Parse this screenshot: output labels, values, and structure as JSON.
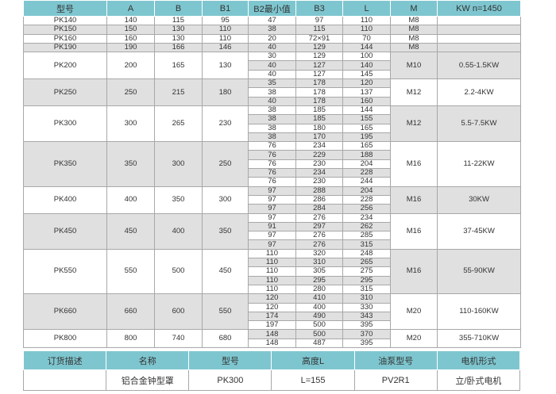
{
  "main": {
    "headers": [
      "型号",
      "A",
      "B",
      "B1",
      "B2最小值",
      "B3",
      "L",
      "M",
      "KW n=1450"
    ],
    "groups": [
      {
        "model": "PK140",
        "A": "140",
        "B": "115",
        "B1": "95",
        "M": "M8",
        "KW": "",
        "rows": [
          [
            "47",
            "97",
            "110"
          ]
        ]
      },
      {
        "model": "PK150",
        "A": "150",
        "B": "130",
        "B1": "110",
        "M": "M8",
        "KW": "",
        "rows": [
          [
            "38",
            "115",
            "110"
          ]
        ]
      },
      {
        "model": "PK160",
        "A": "160",
        "B": "130",
        "B1": "110",
        "M": "M8",
        "KW": "",
        "rows": [
          [
            "20",
            "72×91",
            "70"
          ]
        ]
      },
      {
        "model": "PK190",
        "A": "190",
        "B": "166",
        "B1": "146",
        "M": "M8",
        "KW": "",
        "rows": [
          [
            "40",
            "129",
            "144"
          ]
        ]
      },
      {
        "model": "PK200",
        "A": "200",
        "B": "165",
        "B1": "130",
        "M": "M10",
        "KW": "0.55-1.5KW",
        "rows": [
          [
            "30",
            "129",
            "100"
          ],
          [
            "40",
            "127",
            "140"
          ],
          [
            "40",
            "127",
            "145"
          ]
        ]
      },
      {
        "model": "PK250",
        "A": "250",
        "B": "215",
        "B1": "180",
        "M": "M12",
        "KW": "2.2-4KW",
        "rows": [
          [
            "35",
            "178",
            "120"
          ],
          [
            "38",
            "178",
            "137"
          ],
          [
            "40",
            "178",
            "160"
          ]
        ]
      },
      {
        "model": "PK300",
        "A": "300",
        "B": "265",
        "B1": "230",
        "M": "M12",
        "KW": "5.5-7.5KW",
        "rows": [
          [
            "38",
            "185",
            "144"
          ],
          [
            "38",
            "185",
            "155"
          ],
          [
            "38",
            "180",
            "165"
          ],
          [
            "38",
            "170",
            "195"
          ]
        ]
      },
      {
        "model": "PK350",
        "A": "350",
        "B": "300",
        "B1": "250",
        "M": "M16",
        "KW": "11-22KW",
        "rows": [
          [
            "76",
            "234",
            "165"
          ],
          [
            "76",
            "229",
            "188"
          ],
          [
            "76",
            "230",
            "204"
          ],
          [
            "76",
            "234",
            "228"
          ],
          [
            "76",
            "230",
            "244"
          ]
        ]
      },
      {
        "model": "PK400",
        "A": "400",
        "B": "350",
        "B1": "300",
        "M": "M16",
        "KW": "30KW",
        "rows": [
          [
            "97",
            "288",
            "204"
          ],
          [
            "97",
            "286",
            "228"
          ],
          [
            "97",
            "284",
            "256"
          ]
        ]
      },
      {
        "model": "PK450",
        "A": "450",
        "B": "400",
        "B1": "350",
        "M": "M16",
        "KW": "37-45KW",
        "rows": [
          [
            "97",
            "276",
            "234"
          ],
          [
            "91",
            "297",
            "262"
          ],
          [
            "97",
            "276",
            "285"
          ],
          [
            "97",
            "276",
            "315"
          ]
        ]
      },
      {
        "model": "PK550",
        "A": "550",
        "B": "500",
        "B1": "450",
        "M": "M16",
        "KW": "55-90KW",
        "rows": [
          [
            "110",
            "320",
            "248"
          ],
          [
            "110",
            "310",
            "265"
          ],
          [
            "110",
            "305",
            "275"
          ],
          [
            "110",
            "295",
            "295"
          ],
          [
            "110",
            "280",
            "315"
          ]
        ]
      },
      {
        "model": "PK660",
        "A": "660",
        "B": "600",
        "B1": "550",
        "M": "M20",
        "KW": "110-160KW",
        "rows": [
          [
            "120",
            "410",
            "310"
          ],
          [
            "120",
            "400",
            "330"
          ],
          [
            "174",
            "490",
            "343"
          ],
          [
            "197",
            "500",
            "395"
          ]
        ]
      },
      {
        "model": "PK800",
        "A": "800",
        "B": "740",
        "B1": "680",
        "M": "M20",
        "KW": "355-710KW",
        "rows": [
          [
            "148",
            "500",
            "370"
          ],
          [
            "148",
            "487",
            "395"
          ]
        ]
      }
    ]
  },
  "order": {
    "headers": [
      "订货描述",
      "名称",
      "型号",
      "高度L",
      "油泵型号",
      "电机形式"
    ],
    "values": [
      "",
      "铝合金钟型罩",
      "PK300",
      "L=155",
      "PV2R1",
      "立/卧式电机"
    ]
  },
  "colors": {
    "header": "#7ec6cf",
    "shade": "#e0e0e0",
    "border": "#a8a8a8"
  }
}
